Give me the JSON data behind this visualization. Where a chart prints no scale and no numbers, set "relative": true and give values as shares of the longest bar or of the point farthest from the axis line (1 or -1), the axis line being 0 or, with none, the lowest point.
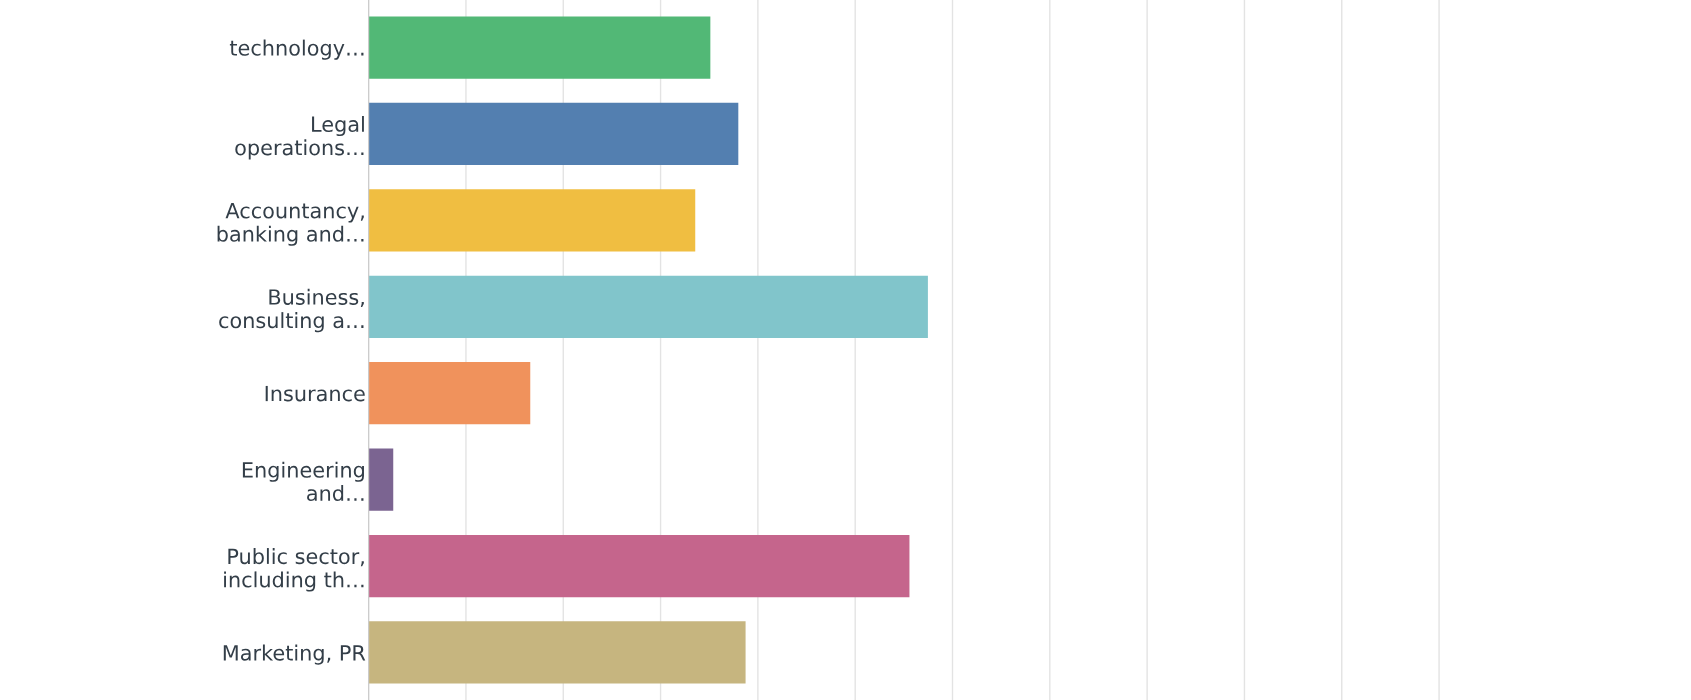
{
  "chart_data": {
    "type": "bar",
    "orientation": "horizontal",
    "relative": true,
    "grid": "x",
    "categories": [
      "technology…",
      "Legal\noperations…",
      "Accountancy,\nbanking and…",
      "Business,\nconsulting a…",
      "Insurance",
      "Engineering\nand…",
      "Public sector,\nincluding th…",
      "Marketing, PR"
    ],
    "values": [
      0.611,
      0.661,
      0.584,
      1,
      0.289,
      0.044,
      0.967,
      0.674
    ],
    "colors": [
      "#52b876",
      "#537fb0",
      "#f0be41",
      "#81c5cb",
      "#f0925c",
      "#7b6491",
      "#c5658c",
      "#c6b57f"
    ]
  }
}
